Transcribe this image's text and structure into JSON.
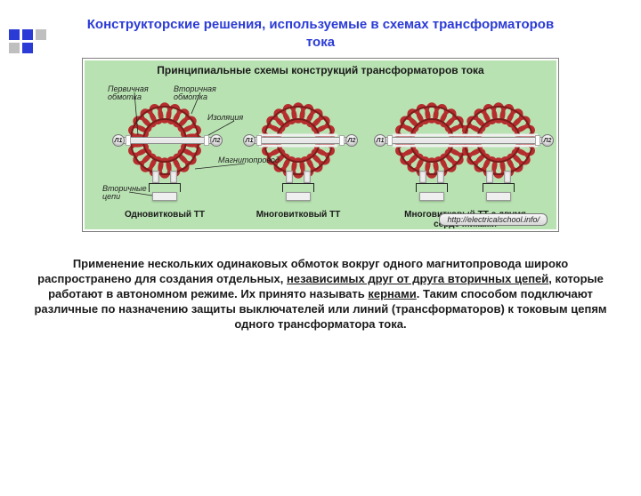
{
  "colors": {
    "title": "#2b3bd6",
    "fig_bg": "#b9e2b2",
    "coil": "#b62d2d",
    "coil_dark": "#7a1b1b",
    "primary_bar": "#e8e8e8",
    "sec_block": "#efefef",
    "term_fill": "#f4f4f4",
    "annot_line": "#222222",
    "paragraph": "#1a1a1a"
  },
  "dims": {
    "fig_w": 530,
    "fig_h": 190,
    "coil_outer_r": 38,
    "coil_wire_w": 4
  },
  "fonts": {
    "title_size": 15,
    "fig_title_size": 12,
    "annot_size": 9,
    "caption_size": 10,
    "url_size": 9,
    "paragraph_size": 13
  },
  "title": "Конструкторские решения, используемые в схемах трансформаторов тока",
  "fig": {
    "title": "Принципиальные схемы конструкций трансформаторов тока",
    "annotations": {
      "primary": "Первичная\nобмотка",
      "secondary": "Вторичная\nобмотка",
      "insulation": "Изоляция",
      "core": "Магнитопровод",
      "sec_circuit": "Вторичные\nцепи"
    },
    "terminals": {
      "L1": "Л1",
      "L2": "Л2"
    },
    "captions": {
      "single": "Одновитковый ТТ",
      "multi": "Многовитковый ТТ",
      "dual": "Многовитковый ТТ с двумя сердечниками"
    },
    "url": "http://electricalschool.info/"
  },
  "paragraph": {
    "pre": "Применение нескольких одинаковых обмоток вокруг одного магнитопровода широко распространено для создания отдельных, ",
    "u1": "независимых друг от друга вторичных цепей",
    "mid": ", которые работают в автономном режиме. Их принято называть ",
    "u2": "кернами",
    "post": ". Таким способом подключают различные по назначению защиты выключателей или линий (трансформаторов) к токовым цепям одного трансформатора тока."
  }
}
